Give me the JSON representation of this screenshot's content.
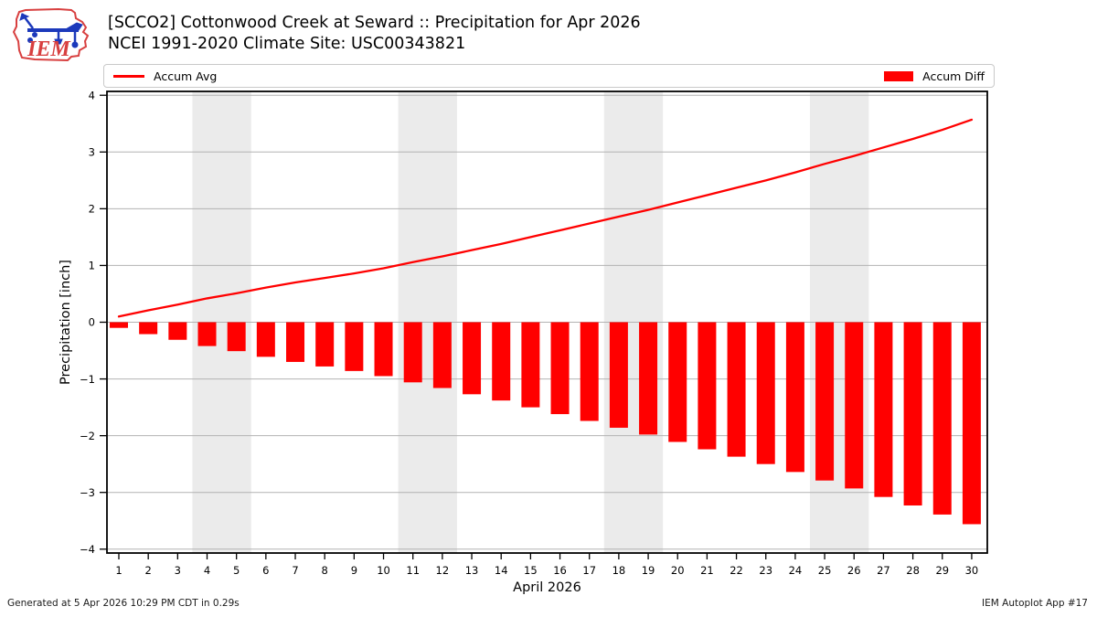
{
  "header": {
    "title": "[SCCO2] Cottonwood Creek at Seward :: Precipitation for Apr 2026",
    "subtitle": "NCEI 1991-2020 Climate Site: USC00343821",
    "logo_text": "IEM"
  },
  "legend": {
    "avg_label": "Accum Avg",
    "diff_label": "Accum Diff"
  },
  "footer": {
    "generated": "Generated at 5 Apr 2026 10:29 PM CDT in 0.29s",
    "app": "IEM Autoplot App #17"
  },
  "colors": {
    "accent_red": "#ff0000",
    "grid": "#b2b2b2",
    "weekend_band": "#ebebeb",
    "frame": "#000000",
    "legend_border": "#c9c9c9",
    "logo_red": "#d84040",
    "logo_blue": "#1c39bb"
  },
  "chart_data": {
    "type": "bar",
    "x": [
      1,
      2,
      3,
      4,
      5,
      6,
      7,
      8,
      9,
      10,
      11,
      12,
      13,
      14,
      15,
      16,
      17,
      18,
      19,
      20,
      21,
      22,
      23,
      24,
      25,
      26,
      27,
      28,
      29,
      30
    ],
    "xlabel": "April 2026",
    "ylabel": "Precipitation [inch]",
    "ylim": [
      -4,
      4
    ],
    "yticks": [
      -4,
      -3,
      -2,
      -1,
      0,
      1,
      2,
      3,
      4
    ],
    "ytick_labels": [
      "−4",
      "−3",
      "−2",
      "−1",
      "0",
      "1",
      "2",
      "3",
      "4"
    ],
    "grid": "horizontal",
    "legend_position": "top",
    "weekend_bands": [
      [
        3.5,
        5.5
      ],
      [
        10.5,
        12.5
      ],
      [
        17.5,
        19.5
      ],
      [
        24.5,
        26.5
      ]
    ],
    "series": [
      {
        "name": "Accum Avg",
        "type": "line",
        "color": "#ff0000",
        "values": [
          0.1,
          0.21,
          0.31,
          0.42,
          0.51,
          0.61,
          0.7,
          0.78,
          0.86,
          0.95,
          1.06,
          1.16,
          1.27,
          1.38,
          1.5,
          1.62,
          1.74,
          1.86,
          1.98,
          2.11,
          2.24,
          2.37,
          2.5,
          2.64,
          2.79,
          2.93,
          3.08,
          3.23,
          3.39,
          3.57
        ]
      },
      {
        "name": "Accum Diff",
        "type": "bar",
        "color": "#ff0000",
        "values": [
          -0.1,
          -0.21,
          -0.31,
          -0.42,
          -0.51,
          -0.61,
          -0.7,
          -0.78,
          -0.86,
          -0.95,
          -1.06,
          -1.16,
          -1.27,
          -1.38,
          -1.5,
          -1.62,
          -1.74,
          -1.86,
          -1.98,
          -2.11,
          -2.24,
          -2.37,
          -2.5,
          -2.64,
          -2.79,
          -2.93,
          -3.08,
          -3.23,
          -3.39,
          -3.56
        ]
      }
    ]
  }
}
